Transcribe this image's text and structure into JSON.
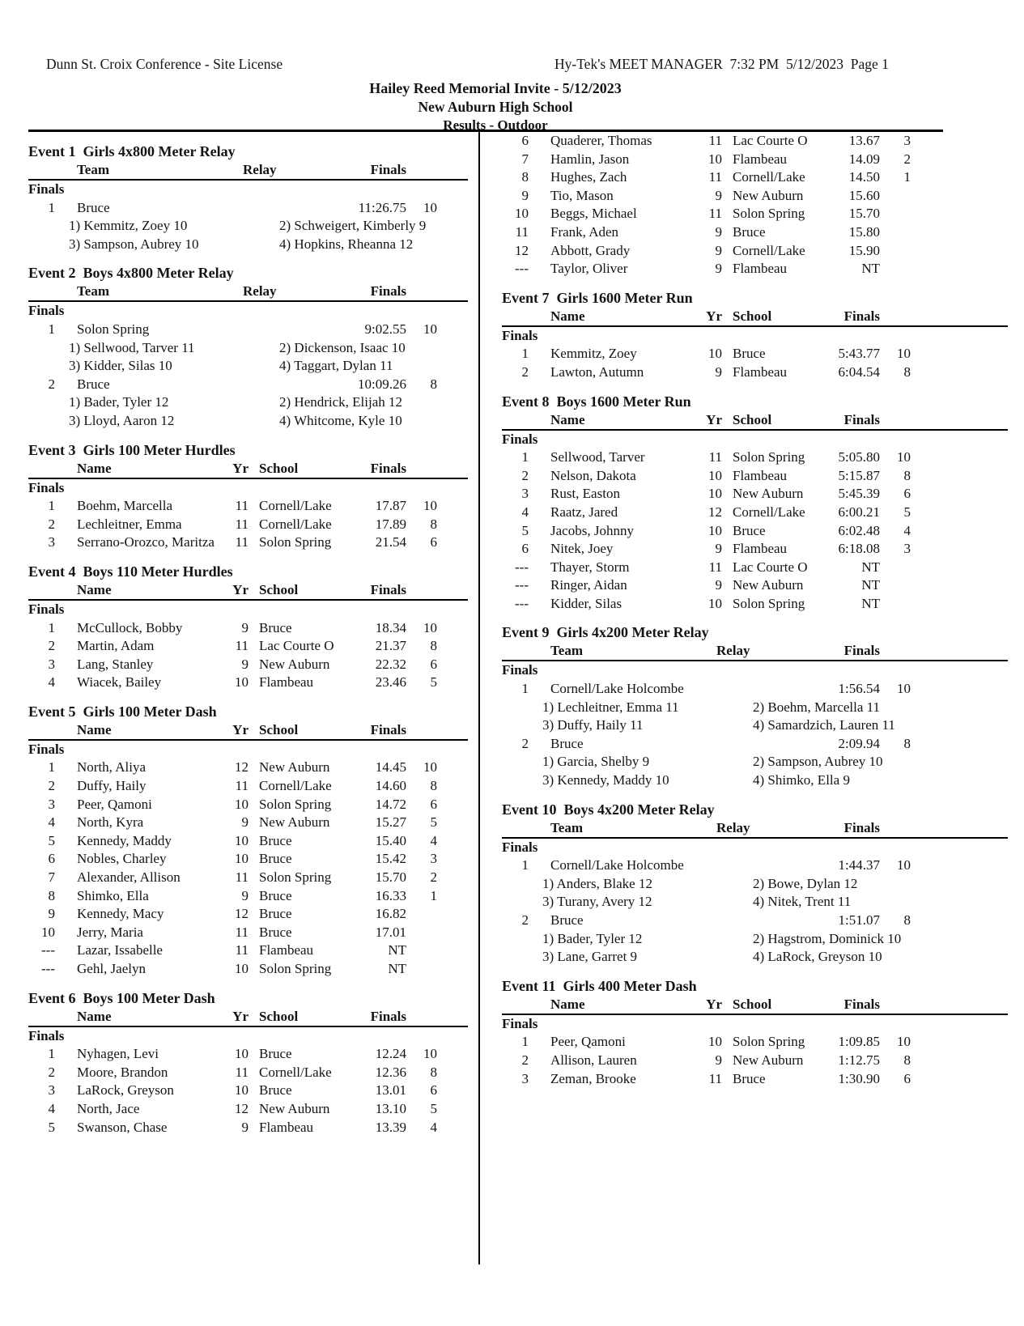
{
  "page": {
    "license_text": "Dunn St. Croix Conference - Site License",
    "manager_text": "Hy-Tek's MEET MANAGER  7:32 PM  5/12/2023  Page 1",
    "meet_title": "Hailey Reed Memorial Invite - 5/12/2023",
    "venue": "New Auburn High School",
    "results_label": "Results - Outdoor"
  },
  "relay_headers": {
    "team": "Team",
    "relay": "Relay",
    "finals": "Finals"
  },
  "individual_headers": {
    "name": "Name",
    "yr": "Yr",
    "school": "School",
    "finals": "Finals"
  },
  "columns": {
    "left": [
      {
        "title": "Event 1  Girls 4x800 Meter Relay",
        "headers": {
          "team": "Team",
          "relay": "Relay",
          "finals": "Finals"
        },
        "section": "Finals",
        "rows": [
          {
            "place": "1",
            "team": "Bruce",
            "finals": "11:26.75",
            "points": "10",
            "legs": [
              [
                "1) Kemmitz, Zoey 10",
                "2) Schweigert, Kimberly 9"
              ],
              [
                "3) Sampson, Aubrey 10",
                "4) Hopkins, Rheanna 12"
              ]
            ]
          }
        ]
      },
      {
        "title": "Event 2  Boys 4x800 Meter Relay",
        "headers": {
          "team": "Team",
          "relay": "Relay",
          "finals": "Finals"
        },
        "section": "Finals",
        "rows": [
          {
            "place": "1",
            "team": "Solon Spring",
            "finals": "9:02.55",
            "points": "10",
            "legs": [
              [
                "1) Sellwood, Tarver 11",
                "2) Dickenson, Isaac 10"
              ],
              [
                "3) Kidder, Silas 10",
                "4) Taggart, Dylan 11"
              ]
            ]
          },
          {
            "place": "2",
            "team": "Bruce",
            "finals": "10:09.26",
            "points": "8",
            "legs": [
              [
                "1) Bader, Tyler 12",
                "2) Hendrick, Elijah 12"
              ],
              [
                "3) Lloyd, Aaron 12",
                "4) Whitcome, Kyle 10"
              ]
            ]
          }
        ]
      },
      {
        "title": "Event 3  Girls 100 Meter Hurdles",
        "headers": {
          "name": "Name",
          "yr": "Yr",
          "school": "School",
          "finals": "Finals"
        },
        "section": "Finals",
        "rows": [
          {
            "place": "1",
            "name": "Boehm, Marcella",
            "yr": "11",
            "school": "Cornell/Lake",
            "finals": "17.87",
            "points": "10"
          },
          {
            "place": "2",
            "name": "Lechleitner, Emma",
            "yr": "11",
            "school": "Cornell/Lake",
            "finals": "17.89",
            "points": "8"
          },
          {
            "place": "3",
            "name": "Serrano-Orozco, Maritza",
            "yr": "11",
            "school": "Solon Spring",
            "finals": "21.54",
            "points": "6"
          }
        ]
      },
      {
        "title": "Event 4  Boys 110 Meter Hurdles",
        "headers": {
          "name": "Name",
          "yr": "Yr",
          "school": "School",
          "finals": "Finals"
        },
        "section": "Finals",
        "rows": [
          {
            "place": "1",
            "name": "McCullock, Bobby",
            "yr": "9",
            "school": "Bruce",
            "finals": "18.34",
            "points": "10"
          },
          {
            "place": "2",
            "name": "Martin, Adam",
            "yr": "11",
            "school": "Lac Courte O",
            "finals": "21.37",
            "points": "8"
          },
          {
            "place": "3",
            "name": "Lang, Stanley",
            "yr": "9",
            "school": "New Auburn",
            "finals": "22.32",
            "points": "6"
          },
          {
            "place": "4",
            "name": "Wiacek, Bailey",
            "yr": "10",
            "school": "Flambeau",
            "finals": "23.46",
            "points": "5"
          }
        ]
      },
      {
        "title": "Event 5  Girls 100 Meter Dash",
        "headers": {
          "name": "Name",
          "yr": "Yr",
          "school": "School",
          "finals": "Finals"
        },
        "section": "Finals",
        "rows": [
          {
            "place": "1",
            "name": "North, Aliya",
            "yr": "12",
            "school": "New Auburn",
            "finals": "14.45",
            "points": "10"
          },
          {
            "place": "2",
            "name": "Duffy, Haily",
            "yr": "11",
            "school": "Cornell/Lake",
            "finals": "14.60",
            "points": "8"
          },
          {
            "place": "3",
            "name": "Peer, Qamoni",
            "yr": "10",
            "school": "Solon Spring",
            "finals": "14.72",
            "points": "6"
          },
          {
            "place": "4",
            "name": "North, Kyra",
            "yr": "9",
            "school": "New Auburn",
            "finals": "15.27",
            "points": "5"
          },
          {
            "place": "5",
            "name": "Kennedy, Maddy",
            "yr": "10",
            "school": "Bruce",
            "finals": "15.40",
            "points": "4"
          },
          {
            "place": "6",
            "name": "Nobles, Charley",
            "yr": "10",
            "school": "Bruce",
            "finals": "15.42",
            "points": "3"
          },
          {
            "place": "7",
            "name": "Alexander, Allison",
            "yr": "11",
            "school": "Solon Spring",
            "finals": "15.70",
            "points": "2"
          },
          {
            "place": "8",
            "name": "Shimko, Ella",
            "yr": "9",
            "school": "Bruce",
            "finals": "16.33",
            "points": "1"
          },
          {
            "place": "9",
            "name": "Kennedy, Macy",
            "yr": "12",
            "school": "Bruce",
            "finals": "16.82",
            "points": ""
          },
          {
            "place": "10",
            "name": "Jerry, Maria",
            "yr": "11",
            "school": "Bruce",
            "finals": "17.01",
            "points": ""
          },
          {
            "place": "---",
            "name": "Lazar, Issabelle",
            "yr": "11",
            "school": "Flambeau",
            "finals": "NT",
            "points": ""
          },
          {
            "place": "---",
            "name": "Gehl, Jaelyn",
            "yr": "10",
            "school": "Solon Spring",
            "finals": "NT",
            "points": ""
          }
        ]
      },
      {
        "title": "Event 6  Boys 100 Meter Dash",
        "headers": {
          "name": "Name",
          "yr": "Yr",
          "school": "School",
          "finals": "Finals"
        },
        "section": "Finals",
        "rows": [
          {
            "place": "1",
            "name": "Nyhagen, Levi",
            "yr": "10",
            "school": "Bruce",
            "finals": "12.24",
            "points": "10"
          },
          {
            "place": "2",
            "name": "Moore, Brandon",
            "yr": "11",
            "school": "Cornell/Lake",
            "finals": "12.36",
            "points": "8"
          },
          {
            "place": "3",
            "name": "LaRock, Greyson",
            "yr": "10",
            "school": "Bruce",
            "finals": "13.01",
            "points": "6"
          },
          {
            "place": "4",
            "name": "North, Jace",
            "yr": "12",
            "school": "New Auburn",
            "finals": "13.10",
            "points": "5"
          },
          {
            "place": "5",
            "name": "Swanson, Chase",
            "yr": "9",
            "school": "Flambeau",
            "finals": "13.39",
            "points": "4"
          }
        ]
      }
    ],
    "right": [
      {
        "rows": [
          {
            "place": "6",
            "name": "Quaderer, Thomas",
            "yr": "11",
            "school": "Lac Courte O",
            "finals": "13.67",
            "points": "3"
          },
          {
            "place": "7",
            "name": "Hamlin, Jason",
            "yr": "10",
            "school": "Flambeau",
            "finals": "14.09",
            "points": "2"
          },
          {
            "place": "8",
            "name": "Hughes, Zach",
            "yr": "11",
            "school": "Cornell/Lake",
            "finals": "14.50",
            "points": "1"
          },
          {
            "place": "9",
            "name": "Tio, Mason",
            "yr": "9",
            "school": "New Auburn",
            "finals": "15.60",
            "points": ""
          },
          {
            "place": "10",
            "name": "Beggs, Michael",
            "yr": "11",
            "school": "Solon Spring",
            "finals": "15.70",
            "points": ""
          },
          {
            "place": "11",
            "name": "Frank, Aden",
            "yr": "9",
            "school": "Bruce",
            "finals": "15.80",
            "points": ""
          },
          {
            "place": "12",
            "name": "Abbott, Grady",
            "yr": "9",
            "school": "Cornell/Lake",
            "finals": "15.90",
            "points": ""
          },
          {
            "place": "---",
            "name": "Taylor, Oliver",
            "yr": "9",
            "school": "Flambeau",
            "finals": "NT",
            "points": ""
          }
        ]
      },
      {
        "title": "Event 7  Girls 1600 Meter Run",
        "headers": {
          "name": "Name",
          "yr": "Yr",
          "school": "School",
          "finals": "Finals"
        },
        "section": "Finals",
        "rows": [
          {
            "place": "1",
            "name": "Kemmitz, Zoey",
            "yr": "10",
            "school": "Bruce",
            "finals": "5:43.77",
            "points": "10"
          },
          {
            "place": "2",
            "name": "Lawton, Autumn",
            "yr": "9",
            "school": "Flambeau",
            "finals": "6:04.54",
            "points": "8"
          }
        ]
      },
      {
        "title": "Event 8  Boys 1600 Meter Run",
        "headers": {
          "name": "Name",
          "yr": "Yr",
          "school": "School",
          "finals": "Finals"
        },
        "section": "Finals",
        "rows": [
          {
            "place": "1",
            "name": "Sellwood, Tarver",
            "yr": "11",
            "school": "Solon Spring",
            "finals": "5:05.80",
            "points": "10"
          },
          {
            "place": "2",
            "name": "Nelson, Dakota",
            "yr": "10",
            "school": "Flambeau",
            "finals": "5:15.87",
            "points": "8"
          },
          {
            "place": "3",
            "name": "Rust, Easton",
            "yr": "10",
            "school": "New Auburn",
            "finals": "5:45.39",
            "points": "6"
          },
          {
            "place": "4",
            "name": "Raatz, Jared",
            "yr": "12",
            "school": "Cornell/Lake",
            "finals": "6:00.21",
            "points": "5"
          },
          {
            "place": "5",
            "name": "Jacobs, Johnny",
            "yr": "10",
            "school": "Bruce",
            "finals": "6:02.48",
            "points": "4"
          },
          {
            "place": "6",
            "name": "Nitek, Joey",
            "yr": "9",
            "school": "Flambeau",
            "finals": "6:18.08",
            "points": "3"
          },
          {
            "place": "---",
            "name": "Thayer, Storm",
            "yr": "11",
            "school": "Lac Courte O",
            "finals": "NT",
            "points": ""
          },
          {
            "place": "---",
            "name": "Ringer, Aidan",
            "yr": "9",
            "school": "New Auburn",
            "finals": "NT",
            "points": ""
          },
          {
            "place": "---",
            "name": "Kidder, Silas",
            "yr": "10",
            "school": "Solon Spring",
            "finals": "NT",
            "points": ""
          }
        ]
      },
      {
        "title": "Event 9  Girls 4x200 Meter Relay",
        "headers": {
          "team": "Team",
          "relay": "Relay",
          "finals": "Finals"
        },
        "section": "Finals",
        "rows": [
          {
            "place": "1",
            "team": "Cornell/Lake Holcombe",
            "finals": "1:56.54",
            "points": "10",
            "legs": [
              [
                "1) Lechleitner, Emma 11",
                "2) Boehm, Marcella 11"
              ],
              [
                "3) Duffy, Haily 11",
                "4) Samardzich, Lauren 11"
              ]
            ]
          },
          {
            "place": "2",
            "team": "Bruce",
            "finals": "2:09.94",
            "points": "8",
            "legs": [
              [
                "1) Garcia, Shelby 9",
                "2) Sampson, Aubrey 10"
              ],
              [
                "3) Kennedy, Maddy 10",
                "4) Shimko, Ella 9"
              ]
            ]
          }
        ]
      },
      {
        "title": "Event 10  Boys 4x200 Meter Relay",
        "headers": {
          "team": "Team",
          "relay": "Relay",
          "finals": "Finals"
        },
        "section": "Finals",
        "rows": [
          {
            "place": "1",
            "team": "Cornell/Lake Holcombe",
            "finals": "1:44.37",
            "points": "10",
            "legs": [
              [
                "1) Anders, Blake 12",
                "2) Bowe, Dylan 12"
              ],
              [
                "3) Turany, Avery 12",
                "4) Nitek, Trent 11"
              ]
            ]
          },
          {
            "place": "2",
            "team": "Bruce",
            "finals": "1:51.07",
            "points": "8",
            "legs": [
              [
                "1) Bader, Tyler 12",
                "2) Hagstrom, Dominick 10"
              ],
              [
                "3) Lane, Garret 9",
                "4) LaRock, Greyson 10"
              ]
            ]
          }
        ]
      },
      {
        "title": "Event 11  Girls 400 Meter Dash",
        "headers": {
          "name": "Name",
          "yr": "Yr",
          "school": "School",
          "finals": "Finals"
        },
        "section": "Finals",
        "rows": [
          {
            "place": "1",
            "name": "Peer, Qamoni",
            "yr": "10",
            "school": "Solon Spring",
            "finals": "1:09.85",
            "points": "10"
          },
          {
            "place": "2",
            "name": "Allison, Lauren",
            "yr": "9",
            "school": "New Auburn",
            "finals": "1:12.75",
            "points": "8"
          },
          {
            "place": "3",
            "name": "Zeman, Brooke",
            "yr": "11",
            "school": "Bruce",
            "finals": "1:30.90",
            "points": "6"
          }
        ]
      }
    ]
  }
}
